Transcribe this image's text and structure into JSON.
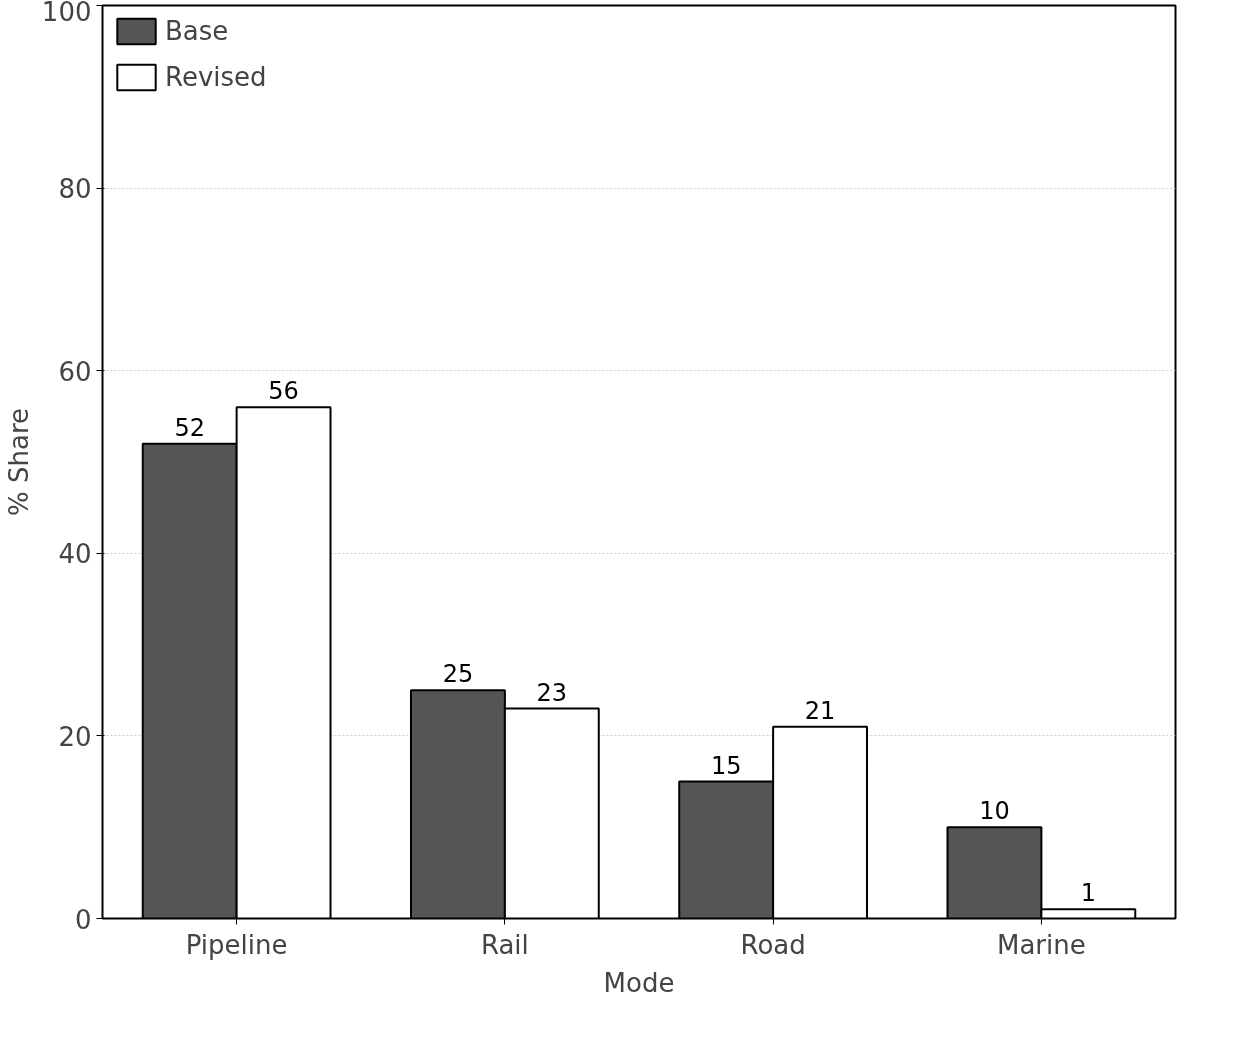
{
  "chart_data": {
    "type": "bar",
    "xlabel": "Mode",
    "ylabel": "% Share",
    "categories": [
      "Pipeline",
      "Rail",
      "Road",
      "Marine"
    ],
    "series": [
      {
        "name": "Base",
        "color": "#555555",
        "values": [
          52,
          25,
          15,
          10
        ]
      },
      {
        "name": "Revised",
        "color": "#ffffff",
        "values": [
          56,
          23,
          21,
          1
        ]
      }
    ],
    "ylim": [
      0,
      100
    ],
    "yticks": [
      0,
      20,
      40,
      60,
      80,
      100
    ],
    "grid": "y",
    "legend": "top left",
    "data_labels": true
  }
}
